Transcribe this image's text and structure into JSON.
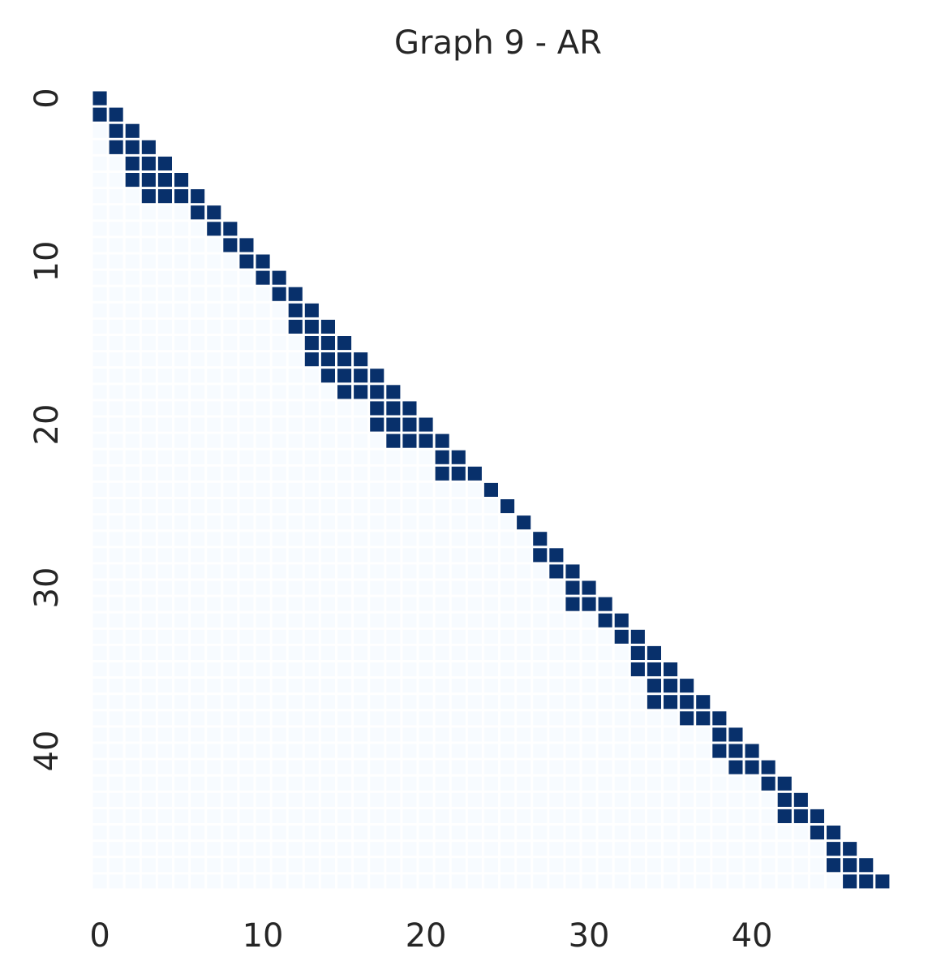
{
  "chart_data": {
    "type": "heatmap",
    "title": "Graph 9 - AR",
    "size": 49,
    "mask": "strict-upper-triangle",
    "x_ticks": [
      "0",
      "10",
      "20",
      "30",
      "40"
    ],
    "x_tick_values": [
      0,
      10,
      20,
      30,
      40
    ],
    "y_ticks": [
      "0",
      "10",
      "20",
      "30",
      "40"
    ],
    "y_tick_values": [
      0,
      10,
      20,
      30,
      40
    ],
    "value_range": [
      0,
      1
    ],
    "colors": {
      "low": "#f7fbff",
      "high": "#08306b",
      "grid": "#ffffff"
    },
    "edges": [
      [
        0,
        0
      ],
      [
        1,
        0
      ],
      [
        1,
        1
      ],
      [
        2,
        1
      ],
      [
        2,
        2
      ],
      [
        3,
        1
      ],
      [
        3,
        2
      ],
      [
        3,
        3
      ],
      [
        4,
        2
      ],
      [
        4,
        3
      ],
      [
        4,
        4
      ],
      [
        5,
        2
      ],
      [
        5,
        3
      ],
      [
        5,
        4
      ],
      [
        5,
        5
      ],
      [
        6,
        3
      ],
      [
        6,
        4
      ],
      [
        6,
        5
      ],
      [
        6,
        6
      ],
      [
        7,
        6
      ],
      [
        7,
        7
      ],
      [
        8,
        7
      ],
      [
        8,
        8
      ],
      [
        9,
        8
      ],
      [
        9,
        9
      ],
      [
        10,
        9
      ],
      [
        10,
        10
      ],
      [
        11,
        10
      ],
      [
        11,
        11
      ],
      [
        12,
        11
      ],
      [
        12,
        12
      ],
      [
        13,
        12
      ],
      [
        13,
        13
      ],
      [
        14,
        12
      ],
      [
        14,
        13
      ],
      [
        14,
        14
      ],
      [
        15,
        13
      ],
      [
        15,
        14
      ],
      [
        15,
        15
      ],
      [
        16,
        13
      ],
      [
        16,
        14
      ],
      [
        16,
        15
      ],
      [
        16,
        16
      ],
      [
        17,
        14
      ],
      [
        17,
        15
      ],
      [
        17,
        16
      ],
      [
        17,
        17
      ],
      [
        18,
        15
      ],
      [
        18,
        16
      ],
      [
        18,
        17
      ],
      [
        18,
        18
      ],
      [
        19,
        17
      ],
      [
        19,
        18
      ],
      [
        19,
        19
      ],
      [
        20,
        17
      ],
      [
        20,
        18
      ],
      [
        20,
        19
      ],
      [
        20,
        20
      ],
      [
        21,
        18
      ],
      [
        21,
        19
      ],
      [
        21,
        20
      ],
      [
        21,
        21
      ],
      [
        22,
        21
      ],
      [
        22,
        22
      ],
      [
        23,
        21
      ],
      [
        23,
        22
      ],
      [
        23,
        23
      ],
      [
        24,
        24
      ],
      [
        25,
        25
      ],
      [
        26,
        26
      ],
      [
        27,
        27
      ],
      [
        28,
        27
      ],
      [
        28,
        28
      ],
      [
        29,
        28
      ],
      [
        29,
        29
      ],
      [
        30,
        29
      ],
      [
        30,
        30
      ],
      [
        31,
        29
      ],
      [
        31,
        30
      ],
      [
        31,
        31
      ],
      [
        32,
        31
      ],
      [
        32,
        32
      ],
      [
        33,
        32
      ],
      [
        33,
        33
      ],
      [
        34,
        33
      ],
      [
        34,
        34
      ],
      [
        35,
        33
      ],
      [
        35,
        34
      ],
      [
        35,
        35
      ],
      [
        36,
        34
      ],
      [
        36,
        35
      ],
      [
        36,
        36
      ],
      [
        37,
        34
      ],
      [
        37,
        35
      ],
      [
        37,
        36
      ],
      [
        37,
        37
      ],
      [
        38,
        36
      ],
      [
        38,
        37
      ],
      [
        38,
        38
      ],
      [
        39,
        38
      ],
      [
        39,
        39
      ],
      [
        40,
        38
      ],
      [
        40,
        39
      ],
      [
        40,
        40
      ],
      [
        41,
        39
      ],
      [
        41,
        40
      ],
      [
        41,
        41
      ],
      [
        42,
        41
      ],
      [
        42,
        42
      ],
      [
        43,
        42
      ],
      [
        43,
        43
      ],
      [
        44,
        42
      ],
      [
        44,
        43
      ],
      [
        44,
        44
      ],
      [
        45,
        44
      ],
      [
        45,
        45
      ],
      [
        46,
        45
      ],
      [
        46,
        46
      ],
      [
        47,
        45
      ],
      [
        47,
        46
      ],
      [
        47,
        47
      ],
      [
        48,
        46
      ],
      [
        48,
        47
      ],
      [
        48,
        48
      ]
    ]
  }
}
